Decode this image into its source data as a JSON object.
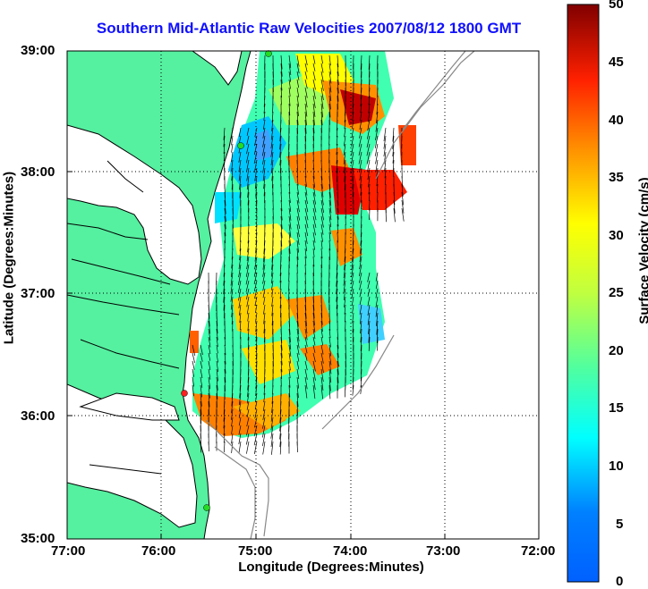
{
  "title": "Southern Mid-Atlantic Raw Velocities 2007/08/12 1800 GMT",
  "xlabel": "Longitude (Degrees:Minutes)",
  "ylabel": "Latitude (Degrees:Minutes)",
  "colorbar_label": "Surface Velocity (cm/s)",
  "x_ticks": [
    "77:00",
    "76:00",
    "75:00",
    "74:00",
    "73:00",
    "72:00"
  ],
  "y_ticks": [
    "39:00",
    "38:00",
    "37:00",
    "36:00",
    "35:00"
  ],
  "colorbar_ticks": [
    "50",
    "45",
    "40",
    "35",
    "30",
    "25",
    "20",
    "15",
    "10",
    "5",
    "0"
  ],
  "colors": {
    "land": "#55f0a0",
    "coastline": "#000000",
    "bathymetry": "#888888",
    "title": "#1010ff",
    "site_marker": "#22dd22",
    "site_marker_alt": "#ff2020"
  },
  "map": {
    "lon_range": [
      -77,
      -72
    ],
    "lat_range": [
      35,
      39
    ],
    "grid": "dotted",
    "colormap": "jet",
    "velocity_range_cms": [
      0,
      50
    ]
  }
}
